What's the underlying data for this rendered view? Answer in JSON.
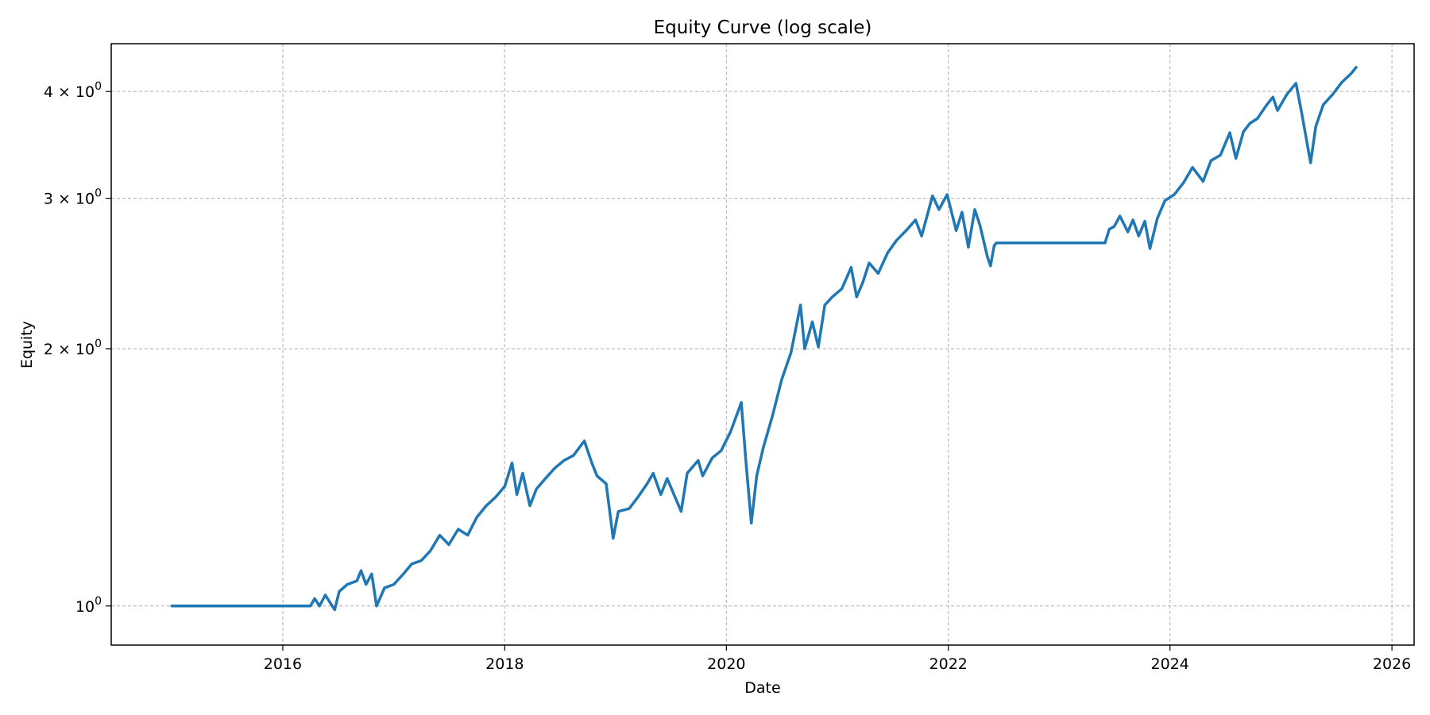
{
  "chart_data": {
    "type": "line",
    "title": "Equity Curve (log scale)",
    "xlabel": "Date",
    "ylabel": "Equity",
    "yscale": "log",
    "grid": true,
    "xlim": [
      "2014-06-15",
      "2026-03-15"
    ],
    "ylim": [
      0.9,
      4.55
    ],
    "x_ticks": [
      {
        "value": "2016-01-01",
        "label": "2016"
      },
      {
        "value": "2018-01-01",
        "label": "2018"
      },
      {
        "value": "2020-01-01",
        "label": "2020"
      },
      {
        "value": "2022-01-01",
        "label": "2022"
      },
      {
        "value": "2024-01-01",
        "label": "2024"
      },
      {
        "value": "2026-01-01",
        "label": "2026"
      }
    ],
    "y_ticks": [
      {
        "value": 1,
        "base": "10",
        "exp": "0"
      },
      {
        "value": 2,
        "base": "2 × 10",
        "exp": "0"
      },
      {
        "value": 3,
        "base": "3 × 10",
        "exp": "0"
      },
      {
        "value": 4,
        "base": "4 × 10",
        "exp": "0"
      }
    ],
    "series": [
      {
        "color": "#1f77b4",
        "points": [
          [
            "2015-01-01",
            1.0
          ],
          [
            "2016-04-01",
            1.0
          ],
          [
            "2016-04-15",
            1.02
          ],
          [
            "2016-05-01",
            1.0
          ],
          [
            "2016-05-20",
            1.03
          ],
          [
            "2016-06-20",
            0.99
          ],
          [
            "2016-07-05",
            1.04
          ],
          [
            "2016-08-01",
            1.06
          ],
          [
            "2016-09-01",
            1.07
          ],
          [
            "2016-09-15",
            1.1
          ],
          [
            "2016-10-01",
            1.06
          ],
          [
            "2016-10-20",
            1.09
          ],
          [
            "2016-11-05",
            1.0
          ],
          [
            "2016-12-01",
            1.05
          ],
          [
            "2017-01-01",
            1.06
          ],
          [
            "2017-02-01",
            1.09
          ],
          [
            "2017-03-01",
            1.12
          ],
          [
            "2017-04-01",
            1.13
          ],
          [
            "2017-05-01",
            1.16
          ],
          [
            "2017-06-01",
            1.21
          ],
          [
            "2017-07-01",
            1.18
          ],
          [
            "2017-08-01",
            1.23
          ],
          [
            "2017-09-01",
            1.21
          ],
          [
            "2017-10-01",
            1.27
          ],
          [
            "2017-11-01",
            1.31
          ],
          [
            "2017-12-01",
            1.34
          ],
          [
            "2018-01-01",
            1.38
          ],
          [
            "2018-01-25",
            1.47
          ],
          [
            "2018-02-10",
            1.35
          ],
          [
            "2018-03-01",
            1.43
          ],
          [
            "2018-03-25",
            1.31
          ],
          [
            "2018-04-15",
            1.37
          ],
          [
            "2018-05-15",
            1.41
          ],
          [
            "2018-06-15",
            1.45
          ],
          [
            "2018-07-15",
            1.48
          ],
          [
            "2018-08-15",
            1.5
          ],
          [
            "2018-09-20",
            1.56
          ],
          [
            "2018-10-15",
            1.47
          ],
          [
            "2018-11-01",
            1.42
          ],
          [
            "2018-12-01",
            1.39
          ],
          [
            "2018-12-24",
            1.2
          ],
          [
            "2019-01-10",
            1.29
          ],
          [
            "2019-02-15",
            1.3
          ],
          [
            "2019-03-15",
            1.34
          ],
          [
            "2019-04-15",
            1.39
          ],
          [
            "2019-05-05",
            1.43
          ],
          [
            "2019-05-30",
            1.35
          ],
          [
            "2019-06-20",
            1.41
          ],
          [
            "2019-08-05",
            1.29
          ],
          [
            "2019-08-25",
            1.43
          ],
          [
            "2019-09-30",
            1.48
          ],
          [
            "2019-10-15",
            1.42
          ],
          [
            "2019-11-15",
            1.49
          ],
          [
            "2019-12-15",
            1.52
          ],
          [
            "2020-01-15",
            1.6
          ],
          [
            "2020-02-19",
            1.73
          ],
          [
            "2020-03-05",
            1.48
          ],
          [
            "2020-03-23",
            1.25
          ],
          [
            "2020-04-10",
            1.42
          ],
          [
            "2020-05-01",
            1.53
          ],
          [
            "2020-06-01",
            1.67
          ],
          [
            "2020-07-01",
            1.84
          ],
          [
            "2020-08-01",
            1.98
          ],
          [
            "2020-09-01",
            2.25
          ],
          [
            "2020-09-15",
            2.0
          ],
          [
            "2020-10-10",
            2.15
          ],
          [
            "2020-10-30",
            2.01
          ],
          [
            "2020-11-20",
            2.25
          ],
          [
            "2020-12-15",
            2.3
          ],
          [
            "2021-01-15",
            2.35
          ],
          [
            "2021-02-15",
            2.49
          ],
          [
            "2021-03-05",
            2.3
          ],
          [
            "2021-03-25",
            2.39
          ],
          [
            "2021-04-15",
            2.52
          ],
          [
            "2021-05-15",
            2.45
          ],
          [
            "2021-06-15",
            2.59
          ],
          [
            "2021-07-15",
            2.68
          ],
          [
            "2021-08-15",
            2.75
          ],
          [
            "2021-09-15",
            2.83
          ],
          [
            "2021-10-05",
            2.71
          ],
          [
            "2021-11-10",
            3.02
          ],
          [
            "2021-12-01",
            2.91
          ],
          [
            "2021-12-28",
            3.03
          ],
          [
            "2022-01-27",
            2.75
          ],
          [
            "2022-02-15",
            2.89
          ],
          [
            "2022-03-08",
            2.63
          ],
          [
            "2022-03-29",
            2.91
          ],
          [
            "2022-04-15",
            2.79
          ],
          [
            "2022-05-10",
            2.56
          ],
          [
            "2022-05-20",
            2.5
          ],
          [
            "2022-06-01",
            2.64
          ],
          [
            "2022-06-08",
            2.66
          ],
          [
            "2023-05-20",
            2.66
          ],
          [
            "2023-06-01",
            2.66
          ],
          [
            "2023-06-15",
            2.76
          ],
          [
            "2023-07-01",
            2.78
          ],
          [
            "2023-07-20",
            2.86
          ],
          [
            "2023-08-15",
            2.74
          ],
          [
            "2023-09-01",
            2.83
          ],
          [
            "2023-09-20",
            2.71
          ],
          [
            "2023-10-10",
            2.82
          ],
          [
            "2023-10-27",
            2.62
          ],
          [
            "2023-11-20",
            2.84
          ],
          [
            "2023-12-15",
            2.98
          ],
          [
            "2024-01-15",
            3.03
          ],
          [
            "2024-02-15",
            3.13
          ],
          [
            "2024-03-15",
            3.26
          ],
          [
            "2024-04-19",
            3.14
          ],
          [
            "2024-05-15",
            3.32
          ],
          [
            "2024-06-15",
            3.37
          ],
          [
            "2024-07-16",
            3.58
          ],
          [
            "2024-08-05",
            3.34
          ],
          [
            "2024-08-30",
            3.59
          ],
          [
            "2024-09-20",
            3.67
          ],
          [
            "2024-10-15",
            3.72
          ],
          [
            "2024-11-15",
            3.86
          ],
          [
            "2024-12-05",
            3.94
          ],
          [
            "2024-12-20",
            3.8
          ],
          [
            "2025-01-20",
            3.97
          ],
          [
            "2025-02-19",
            4.09
          ],
          [
            "2025-03-10",
            3.77
          ],
          [
            "2025-04-08",
            3.3
          ],
          [
            "2025-04-25",
            3.64
          ],
          [
            "2025-05-20",
            3.86
          ],
          [
            "2025-06-20",
            3.97
          ],
          [
            "2025-07-20",
            4.1
          ],
          [
            "2025-08-20",
            4.2
          ],
          [
            "2025-09-05",
            4.27
          ]
        ]
      }
    ]
  }
}
